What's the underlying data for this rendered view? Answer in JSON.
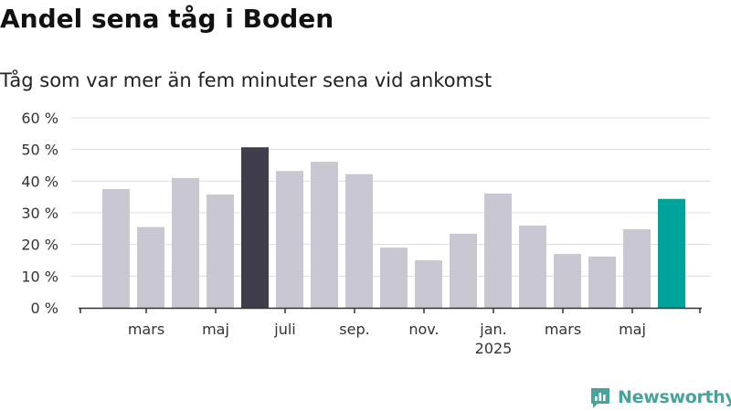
{
  "title": "Andel sena tåg i Boden",
  "subtitle": "Tåg som var mer än fem minuter sena vid ankomst",
  "brand": {
    "name": "Newsworthy",
    "color": "#4aa39a"
  },
  "chart_data": {
    "type": "bar",
    "categories": [
      "2024-02",
      "2024-03",
      "2024-04",
      "2024-05",
      "2024-06",
      "2024-07",
      "2024-08",
      "2024-09",
      "2024-10",
      "2024-11",
      "2024-12",
      "2025-01",
      "2025-02",
      "2025-03",
      "2025-04",
      "2025-05",
      "2025-06"
    ],
    "values": [
      37.5,
      25.5,
      41,
      35.8,
      50.7,
      43.2,
      46.1,
      42.2,
      19,
      15,
      23.4,
      36.1,
      26,
      17,
      16.2,
      24.8,
      34.4
    ],
    "bar_colors": [
      "#c8c7d2",
      "#c8c7d2",
      "#c8c7d2",
      "#c8c7d2",
      "#403e4c",
      "#c8c7d2",
      "#c8c7d2",
      "#c8c7d2",
      "#c8c7d2",
      "#c8c7d2",
      "#c8c7d2",
      "#c8c7d2",
      "#c8c7d2",
      "#c8c7d2",
      "#c8c7d2",
      "#c8c7d2",
      "#00a39a"
    ],
    "ylim": [
      0,
      60
    ],
    "yticks": [
      "0 %",
      "10 %",
      "20 %",
      "30 %",
      "40 %",
      "50 %",
      "60 %"
    ],
    "xtick_labels": [
      {
        "index": 1,
        "label": "mars"
      },
      {
        "index": 3,
        "label": "maj"
      },
      {
        "index": 5,
        "label": "juli"
      },
      {
        "index": 7,
        "label": "sep."
      },
      {
        "index": 9,
        "label": "nov."
      },
      {
        "index": 11,
        "label": "jan.",
        "sublabel": "2025"
      },
      {
        "index": 13,
        "label": "mars"
      },
      {
        "index": 15,
        "label": "maj"
      }
    ],
    "grid": true,
    "colors": {
      "default": "#c8c7d2",
      "highlight": "#403e4c",
      "latest": "#00a39a",
      "grid": "#dddddd",
      "axis": "#333333"
    }
  }
}
